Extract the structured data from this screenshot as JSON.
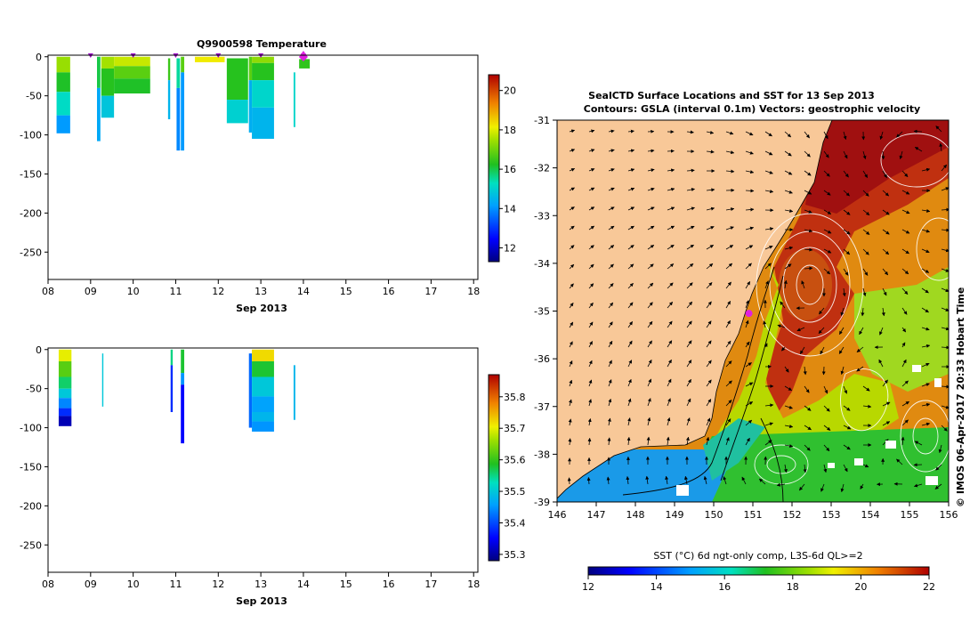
{
  "chart_data": [
    {
      "type": "heatmap",
      "name": "temperature-profile",
      "title": "Q9900598  Temperature",
      "xlabel": "Sep 2013",
      "x_tick_labels": [
        "08",
        "09",
        "10",
        "11",
        "12",
        "13",
        "14",
        "15",
        "16",
        "17",
        "18"
      ],
      "xlim": [
        8,
        18.1
      ],
      "ylim": [
        -285,
        2
      ],
      "y_ticks": [
        0,
        -50,
        -100,
        -150,
        -200,
        -250
      ],
      "colorbar": {
        "min": 11.3,
        "max": 20.8,
        "ticks": [
          12,
          14,
          16,
          18,
          20
        ]
      },
      "profile_markers": [
        9.0,
        10.0,
        11.0,
        12.0,
        13.0,
        14.0
      ],
      "current_marker": 14.0,
      "segments": [
        {
          "x": 8.2,
          "w": 0.32,
          "y0": 0,
          "y1": -98,
          "bands": [
            [
              0,
              -20,
              17.4
            ],
            [
              -20,
              -45,
              16.2
            ],
            [
              -45,
              -75,
              15.2
            ],
            [
              -75,
              -98,
              14.1
            ]
          ]
        },
        {
          "x": 9.15,
          "w": 0.08,
          "y0": 0,
          "y1": -108,
          "bands": [
            [
              0,
              -40,
              16
            ],
            [
              -40,
              -108,
              14.3
            ]
          ]
        },
        {
          "x": 9.25,
          "w": 0.3,
          "y0": 0,
          "y1": -78,
          "bands": [
            [
              0,
              -15,
              17.5
            ],
            [
              -15,
              -50,
              16.3
            ],
            [
              -50,
              -78,
              14.8
            ]
          ]
        },
        {
          "x": 9.55,
          "w": 0.85,
          "y0": 0,
          "y1": -47,
          "bands": [
            [
              0,
              -12,
              17.8
            ],
            [
              -12,
              -28,
              16.8
            ],
            [
              -28,
              -47,
              16.2
            ]
          ]
        },
        {
          "x": 10.82,
          "w": 0.05,
          "y0": -2,
          "y1": -80,
          "bands": [
            [
              -2,
              -30,
              16.5
            ],
            [
              -30,
              -80,
              14.5
            ]
          ]
        },
        {
          "x": 11.02,
          "w": 0.08,
          "y0": -2,
          "y1": -120,
          "bands": [
            [
              -2,
              -40,
              15.5
            ],
            [
              -40,
              -120,
              13.9
            ]
          ]
        },
        {
          "x": 11.12,
          "w": 0.08,
          "y0": 0,
          "y1": -120,
          "bands": [
            [
              0,
              -20,
              16.8
            ],
            [
              -20,
              -120,
              14.1
            ]
          ]
        },
        {
          "x": 11.45,
          "w": 0.7,
          "y0": 0,
          "y1": -7,
          "bands": [
            [
              0,
              -7,
              18.2
            ]
          ]
        },
        {
          "x": 12.2,
          "w": 0.5,
          "y0": -2,
          "y1": -85,
          "bands": [
            [
              -2,
              -55,
              16.3
            ],
            [
              -55,
              -85,
              15
            ]
          ]
        },
        {
          "x": 12.72,
          "w": 0.07,
          "y0": 0,
          "y1": -97,
          "bands": [
            [
              0,
              -30,
              16.8
            ],
            [
              -30,
              -97,
              14.4
            ]
          ]
        },
        {
          "x": 12.79,
          "w": 0.52,
          "y0": 0,
          "y1": -105,
          "bands": [
            [
              0,
              -8,
              17.3
            ],
            [
              -8,
              -30,
              16.3
            ],
            [
              -30,
              -65,
              15.1
            ],
            [
              -65,
              -105,
              14.5
            ]
          ]
        },
        {
          "x": 13.77,
          "w": 0.04,
          "y0": -20,
          "y1": -90,
          "bands": [
            [
              -20,
              -90,
              15.1
            ]
          ]
        },
        {
          "x": 13.9,
          "w": 0.25,
          "y0": -3,
          "y1": -15,
          "bands": [
            [
              -3,
              -15,
              16.4
            ]
          ]
        }
      ]
    },
    {
      "type": "heatmap",
      "name": "salinity-profile",
      "title": "",
      "xlabel": "Sep 2013",
      "x_tick_labels": [
        "08",
        "09",
        "10",
        "11",
        "12",
        "13",
        "14",
        "15",
        "16",
        "17",
        "18"
      ],
      "xlim": [
        8,
        18.1
      ],
      "ylim": [
        -285,
        2
      ],
      "y_ticks": [
        0,
        -50,
        -100,
        -150,
        -200,
        -250
      ],
      "colorbar": {
        "min": 35.28,
        "max": 35.87,
        "ticks": [
          35.3,
          35.4,
          35.5,
          35.6,
          35.7,
          35.8
        ]
      },
      "segments": [
        {
          "x": 8.25,
          "w": 0.3,
          "y0": 0,
          "y1": -98,
          "bands": [
            [
              0,
              -15,
              35.7
            ],
            [
              -15,
              -35,
              35.62
            ],
            [
              -35,
              -50,
              35.56
            ],
            [
              -50,
              -62,
              35.5
            ],
            [
              -62,
              -75,
              35.44
            ],
            [
              -75,
              -85,
              35.38
            ],
            [
              -85,
              -98,
              35.31
            ]
          ]
        },
        {
          "x": 9.27,
          "w": 0.03,
          "y0": -5,
          "y1": -73,
          "bands": [
            [
              -5,
              -73,
              35.5
            ]
          ]
        },
        {
          "x": 10.88,
          "w": 0.05,
          "y0": 0,
          "y1": -80,
          "bands": [
            [
              0,
              -20,
              35.55
            ],
            [
              -20,
              -80,
              35.38
            ]
          ]
        },
        {
          "x": 11.12,
          "w": 0.08,
          "y0": 0,
          "y1": -120,
          "bands": [
            [
              0,
              -30,
              35.58
            ],
            [
              -30,
              -45,
              35.45
            ],
            [
              -45,
              -120,
              35.35
            ]
          ]
        },
        {
          "x": 12.72,
          "w": 0.07,
          "y0": -5,
          "y1": -100,
          "bands": [
            [
              -5,
              -100,
              35.42
            ]
          ]
        },
        {
          "x": 12.79,
          "w": 0.52,
          "y0": 0,
          "y1": -105,
          "bands": [
            [
              0,
              -15,
              35.72
            ],
            [
              -15,
              -35,
              35.58
            ],
            [
              -35,
              -60,
              35.5
            ],
            [
              -60,
              -80,
              35.46
            ],
            [
              -80,
              -92,
              35.48
            ],
            [
              -92,
              -105,
              35.45
            ]
          ]
        },
        {
          "x": 13.77,
          "w": 0.04,
          "y0": -20,
          "y1": -90,
          "bands": [
            [
              -20,
              -90,
              35.48
            ]
          ]
        }
      ]
    },
    {
      "type": "heatmap",
      "name": "sst-map",
      "title": "SealCTD Surface Locations and SST for 13 Sep 2013",
      "subtitle": "Contours: GSLA (interval 0.1m) Vectors: geostrophic velocity",
      "x_tick_labels": [
        "146",
        "147",
        "148",
        "149",
        "150",
        "151",
        "152",
        "153",
        "154",
        "155",
        "156"
      ],
      "y_tick_labels": [
        "-31",
        "-32",
        "-33",
        "-34",
        "-35",
        "-36",
        "-37",
        "-38",
        "-39"
      ],
      "xlim": [
        146,
        156
      ],
      "ylim": [
        -39,
        -31
      ],
      "colorbar_label": "SST (°C) 6d ngt-only comp, L3S-6d QL>=2",
      "colorbar": {
        "min": 12,
        "max": 22,
        "ticks": [
          12,
          14,
          16,
          18,
          20,
          22
        ]
      },
      "seal_location": {
        "lon": 150.9,
        "lat": -35.05
      },
      "credit": "© IMOS 06-Apr-2017 20:33 Hobart Time"
    }
  ]
}
